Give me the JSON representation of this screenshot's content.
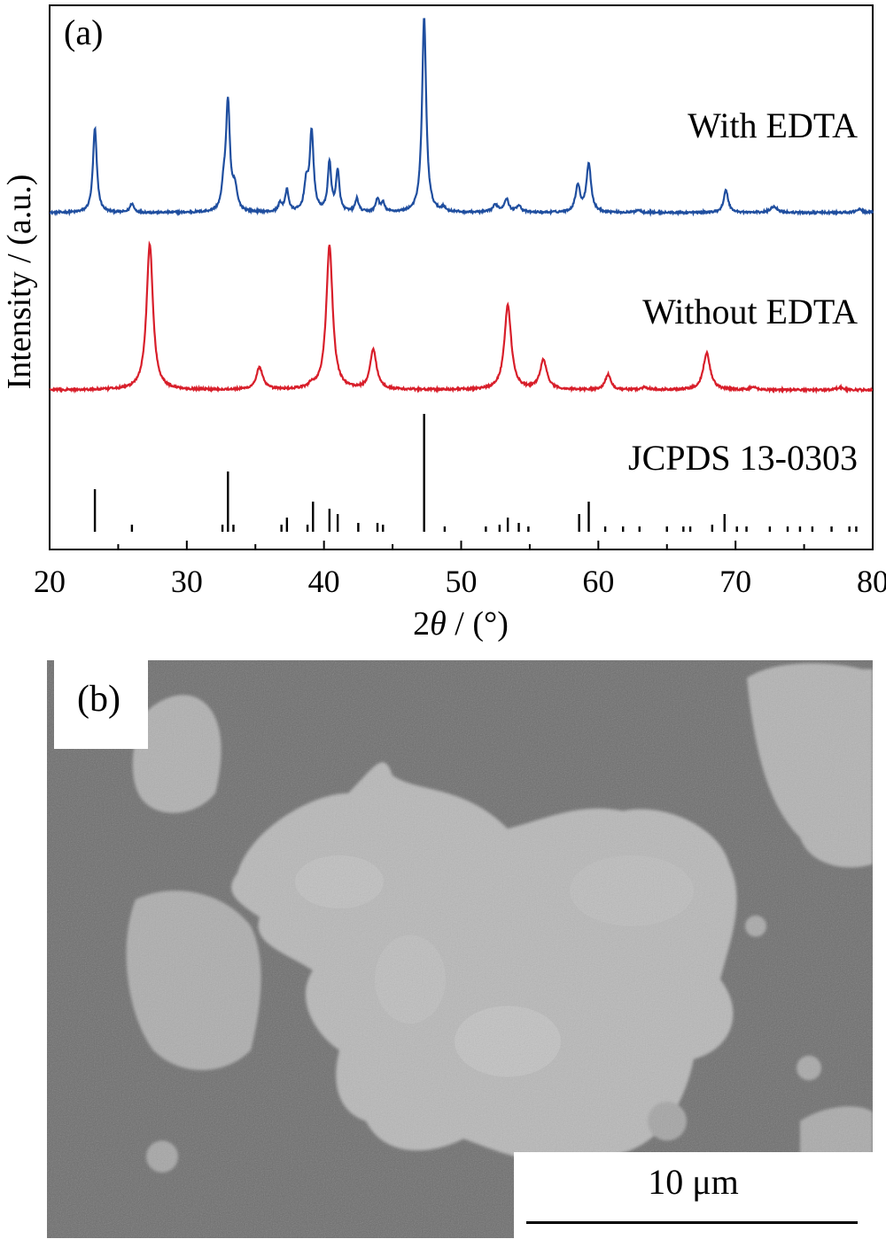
{
  "panel_a_label": "(a)",
  "panel_b_label": "(b)",
  "scale_bar_label": "10 μm",
  "chart_data": {
    "type": "line",
    "xlabel_prefix": "2",
    "xlabel_symbol": "θ",
    "xlabel_suffix": " / (°)",
    "ylabel": "Intensity / (a.u.)",
    "xlim": [
      20,
      80
    ],
    "xticks": [
      20,
      30,
      40,
      50,
      60,
      70,
      80
    ],
    "grid": false,
    "series": [
      {
        "name": "With EDTA",
        "color": "#1f4e9f",
        "offset": 2.0,
        "baseline": 0.0,
        "noise": 0.012,
        "peaks": [
          {
            "x": 23.3,
            "h": 0.95,
            "w": 0.17
          },
          {
            "x": 26.0,
            "h": 0.1,
            "w": 0.17
          },
          {
            "x": 32.7,
            "h": 0.25,
            "w": 0.17
          },
          {
            "x": 33.0,
            "h": 1.22,
            "w": 0.17
          },
          {
            "x": 33.5,
            "h": 0.25,
            "w": 0.2
          },
          {
            "x": 36.8,
            "h": 0.1,
            "w": 0.15
          },
          {
            "x": 37.3,
            "h": 0.25,
            "w": 0.15
          },
          {
            "x": 38.7,
            "h": 0.3,
            "w": 0.17
          },
          {
            "x": 39.1,
            "h": 0.9,
            "w": 0.17
          },
          {
            "x": 40.4,
            "h": 0.55,
            "w": 0.15
          },
          {
            "x": 41.0,
            "h": 0.45,
            "w": 0.15
          },
          {
            "x": 42.4,
            "h": 0.15,
            "w": 0.15
          },
          {
            "x": 43.9,
            "h": 0.15,
            "w": 0.15
          },
          {
            "x": 44.3,
            "h": 0.1,
            "w": 0.15
          },
          {
            "x": 47.3,
            "h": 2.2,
            "w": 0.18
          },
          {
            "x": 48.7,
            "h": 0.05,
            "w": 0.15
          },
          {
            "x": 52.5,
            "h": 0.08,
            "w": 0.25
          },
          {
            "x": 53.3,
            "h": 0.15,
            "w": 0.2
          },
          {
            "x": 54.2,
            "h": 0.08,
            "w": 0.2
          },
          {
            "x": 58.5,
            "h": 0.3,
            "w": 0.2
          },
          {
            "x": 59.3,
            "h": 0.55,
            "w": 0.2
          },
          {
            "x": 62.9,
            "h": 0.03,
            "w": 0.2
          },
          {
            "x": 69.3,
            "h": 0.25,
            "w": 0.2
          },
          {
            "x": 72.8,
            "h": 0.07,
            "w": 0.3
          },
          {
            "x": 79.0,
            "h": 0.04,
            "w": 0.25
          }
        ]
      },
      {
        "name": "Without EDTA",
        "color": "#d81e2a",
        "offset": 0.0,
        "baseline": 0.0,
        "noise": 0.012,
        "peaks": [
          {
            "x": 27.3,
            "h": 1.65,
            "w": 0.28
          },
          {
            "x": 35.3,
            "h": 0.25,
            "w": 0.28
          },
          {
            "x": 39.1,
            "h": 0.04,
            "w": 0.25
          },
          {
            "x": 40.4,
            "h": 1.62,
            "w": 0.28
          },
          {
            "x": 43.6,
            "h": 0.45,
            "w": 0.28
          },
          {
            "x": 53.4,
            "h": 0.95,
            "w": 0.3
          },
          {
            "x": 56.0,
            "h": 0.33,
            "w": 0.3
          },
          {
            "x": 60.7,
            "h": 0.17,
            "w": 0.25
          },
          {
            "x": 63.4,
            "h": 0.03,
            "w": 0.25
          },
          {
            "x": 67.9,
            "h": 0.42,
            "w": 0.3
          },
          {
            "x": 71.3,
            "h": 0.03,
            "w": 0.25
          },
          {
            "x": 77.6,
            "h": 0.03,
            "w": 0.25
          }
        ]
      }
    ],
    "reference": {
      "name": "JCPDS 13-0303",
      "color": "#000000",
      "lines": [
        {
          "x": 23.3,
          "h": 48
        },
        {
          "x": 26.0,
          "h": 8
        },
        {
          "x": 32.6,
          "h": 8
        },
        {
          "x": 33.0,
          "h": 68
        },
        {
          "x": 33.4,
          "h": 8
        },
        {
          "x": 36.9,
          "h": 8
        },
        {
          "x": 37.3,
          "h": 16
        },
        {
          "x": 38.8,
          "h": 8
        },
        {
          "x": 39.2,
          "h": 34
        },
        {
          "x": 40.4,
          "h": 26
        },
        {
          "x": 41.0,
          "h": 20
        },
        {
          "x": 42.5,
          "h": 10
        },
        {
          "x": 43.9,
          "h": 10
        },
        {
          "x": 44.3,
          "h": 8
        },
        {
          "x": 47.3,
          "h": 133
        },
        {
          "x": 48.8,
          "h": 6
        },
        {
          "x": 51.8,
          "h": 6
        },
        {
          "x": 52.8,
          "h": 8
        },
        {
          "x": 53.4,
          "h": 16
        },
        {
          "x": 54.2,
          "h": 10
        },
        {
          "x": 54.9,
          "h": 6
        },
        {
          "x": 58.6,
          "h": 20
        },
        {
          "x": 59.3,
          "h": 34
        },
        {
          "x": 60.5,
          "h": 6
        },
        {
          "x": 61.8,
          "h": 6
        },
        {
          "x": 63.0,
          "h": 6
        },
        {
          "x": 65.0,
          "h": 6
        },
        {
          "x": 66.2,
          "h": 6
        },
        {
          "x": 66.7,
          "h": 6
        },
        {
          "x": 68.3,
          "h": 8
        },
        {
          "x": 69.2,
          "h": 20
        },
        {
          "x": 70.1,
          "h": 6
        },
        {
          "x": 70.8,
          "h": 6
        },
        {
          "x": 72.5,
          "h": 6
        },
        {
          "x": 73.8,
          "h": 6
        },
        {
          "x": 74.7,
          "h": 6
        },
        {
          "x": 75.6,
          "h": 6
        },
        {
          "x": 77.0,
          "h": 6
        },
        {
          "x": 78.3,
          "h": 6
        },
        {
          "x": 78.8,
          "h": 6
        }
      ]
    }
  }
}
